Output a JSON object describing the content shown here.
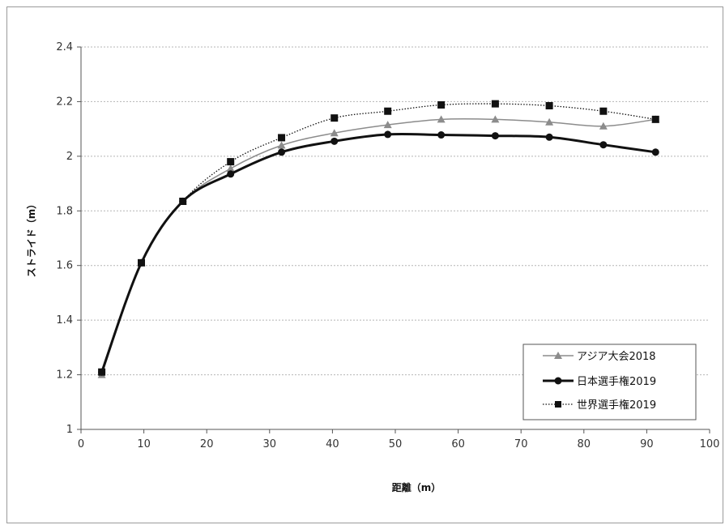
{
  "chart_data": {
    "type": "line",
    "xlabel": "距離（m）",
    "ylabel": "ストライド（m）",
    "xlim": [
      0,
      100
    ],
    "ylim": [
      1,
      2.4
    ],
    "x_ticks": [
      "0",
      "10",
      "20",
      "30",
      "40",
      "50",
      "60",
      "70",
      "80",
      "90",
      "100"
    ],
    "y_ticks": [
      "1",
      "1.2",
      "1.4",
      "1.6",
      "1.8",
      "2",
      "2.2",
      "2.4"
    ],
    "grid": "horizontal dashed",
    "legend_position": "bottom-right",
    "series": [
      {
        "name": "アジア大会2018",
        "color": "#8c8c8c",
        "marker": "triangle",
        "line": "solid-thin",
        "x": [
          3.3,
          9.6,
          16.2,
          23.8,
          31.9,
          40.3,
          48.8,
          57.3,
          65.9,
          74.5,
          83.1,
          91.4
        ],
        "y": [
          1.2,
          1.61,
          1.835,
          1.955,
          2.04,
          2.085,
          2.115,
          2.135,
          2.135,
          2.125,
          2.11,
          2.135
        ]
      },
      {
        "name": "日本選手権2019",
        "color": "#111111",
        "marker": "circle",
        "line": "solid-thick",
        "x": [
          3.3,
          9.6,
          16.2,
          23.8,
          31.9,
          40.3,
          48.8,
          57.3,
          65.9,
          74.5,
          83.1,
          91.4
        ],
        "y": [
          1.21,
          1.61,
          1.835,
          1.935,
          2.015,
          2.055,
          2.08,
          2.078,
          2.075,
          2.07,
          2.042,
          2.015
        ]
      },
      {
        "name": "世界選手権2019",
        "color": "#111111",
        "marker": "square",
        "line": "dotted",
        "x": [
          3.3,
          9.6,
          16.2,
          23.8,
          31.9,
          40.3,
          48.8,
          57.3,
          65.9,
          74.5,
          83.1,
          91.4
        ],
        "y": [
          1.21,
          1.61,
          1.835,
          1.98,
          2.068,
          2.14,
          2.165,
          2.188,
          2.192,
          2.185,
          2.165,
          2.135
        ]
      }
    ]
  }
}
